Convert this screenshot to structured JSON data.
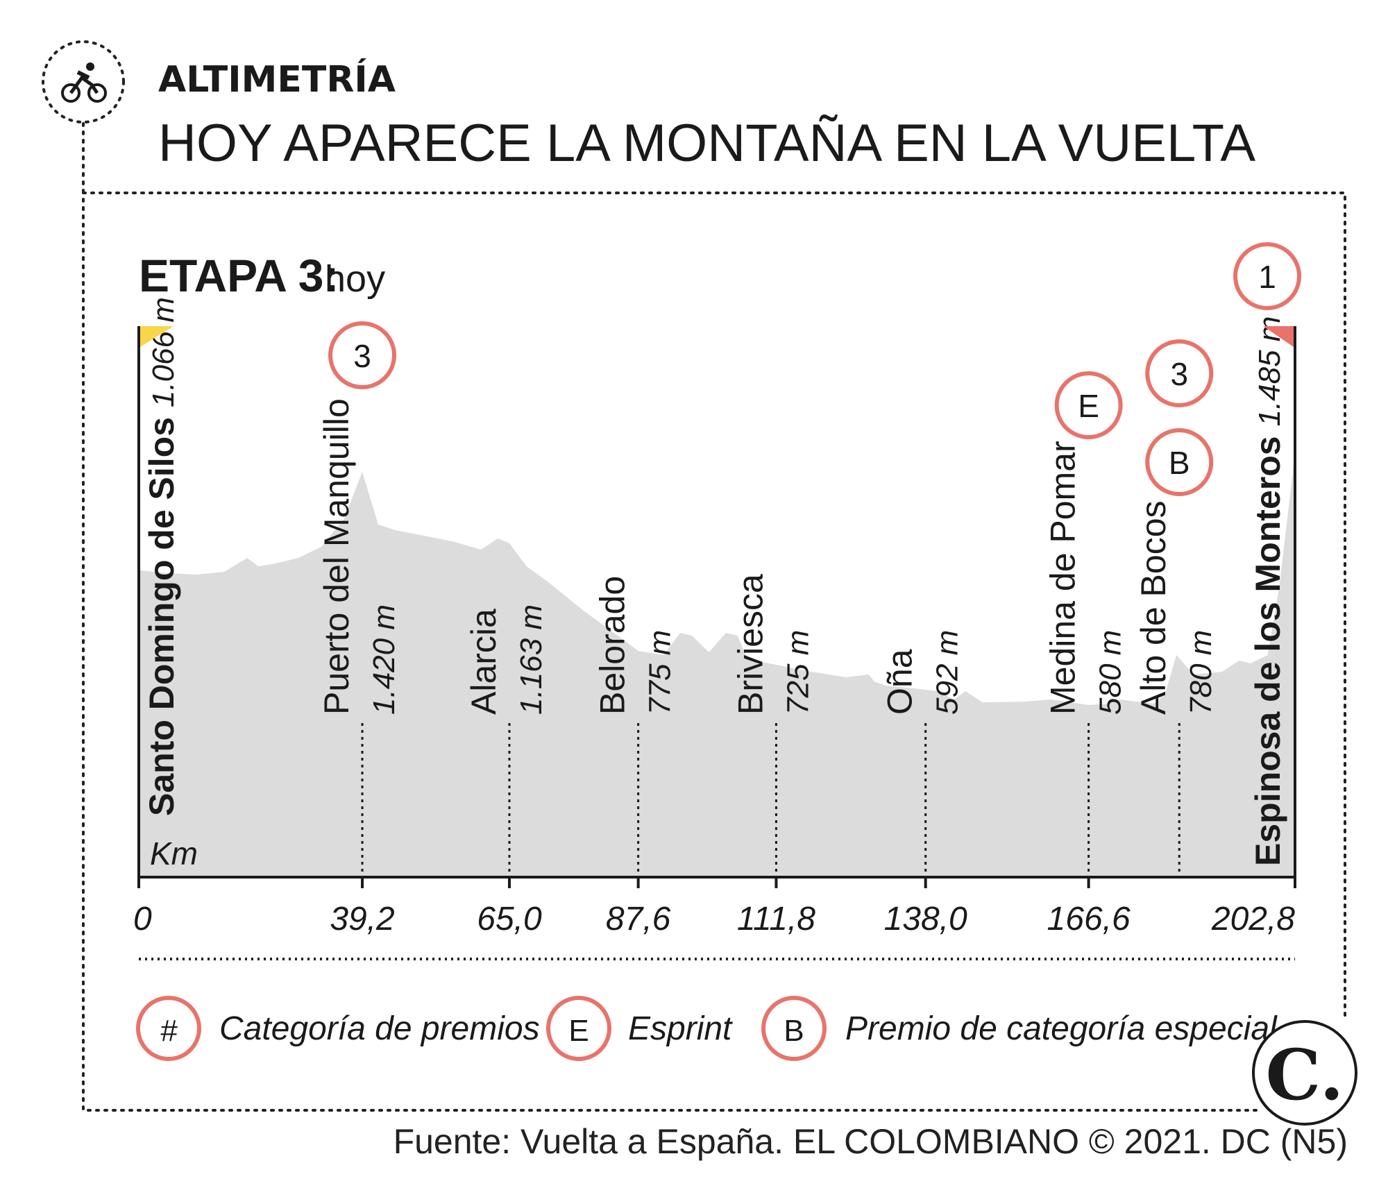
{
  "header": {
    "kicker": "ALTIMETRÍA",
    "title": "HOY APARECE LA MONTAÑA EN LA VUELTA"
  },
  "stage": {
    "label": "ETAPA 3:",
    "sub": "hoy"
  },
  "colors": {
    "profile_fill": "#dcdcdc",
    "badge_ring": "#e8736b",
    "start_flag": "#f7d64a",
    "finish_flag": "#e8736b",
    "text": "#1a1a1a"
  },
  "chart_data": {
    "type": "area",
    "xlabel": "Km",
    "x_ticks": [
      "0",
      "39,2",
      "65,0",
      "87,6",
      "111,8",
      "138,0",
      "166,6",
      "202,8"
    ],
    "xlim": [
      0,
      202.8
    ],
    "profile_km": [
      0,
      5,
      10,
      15,
      19,
      21,
      24,
      28,
      32,
      36,
      39.2,
      42,
      45,
      50,
      55,
      60,
      63,
      65,
      68,
      72,
      78,
      84,
      87.6,
      92,
      95,
      97,
      100,
      103,
      105,
      106.5,
      108,
      111.8,
      118,
      124,
      128,
      129,
      131,
      136,
      140,
      143,
      145,
      148,
      155,
      160,
      166.6,
      170,
      172,
      178,
      180,
      182,
      185,
      190,
      193,
      195,
      198,
      200,
      202.8
    ],
    "profile_m": [
      1066,
      1055,
      1050,
      1060,
      1110,
      1080,
      1090,
      1110,
      1150,
      1250,
      1420,
      1230,
      1210,
      1190,
      1170,
      1140,
      1180,
      1163,
      1080,
      1020,
      920,
      830,
      775,
      760,
      840,
      830,
      770,
      840,
      830,
      760,
      740,
      725,
      700,
      680,
      690,
      665,
      650,
      640,
      630,
      600,
      630,
      590,
      592,
      600,
      580,
      585,
      600,
      585,
      620,
      760,
      690,
      700,
      740,
      730,
      760,
      1000,
      1485
    ],
    "places": [
      {
        "name": "Santo Domingo de Silos",
        "alt": "1.066 m",
        "km": 0,
        "km_label": "0",
        "badge": "",
        "bold": true
      },
      {
        "name": "Puerto del Manquillo",
        "alt": "1.420 m",
        "km": 39.2,
        "km_label": "39,2",
        "badge": "3",
        "bold": false
      },
      {
        "name": "Alarcia",
        "alt": "1.163 m",
        "km": 65.0,
        "km_label": "65,0",
        "badge": "",
        "bold": false
      },
      {
        "name": "Belorado",
        "alt": "775 m",
        "km": 87.6,
        "km_label": "87,6",
        "badge": "",
        "bold": false
      },
      {
        "name": "Briviesca",
        "alt": "725 m",
        "km": 111.8,
        "km_label": "111,8",
        "badge": "",
        "bold": false
      },
      {
        "name": "Oña",
        "alt": "592 m",
        "km": 138.0,
        "km_label": "138,0",
        "badge": "",
        "bold": false
      },
      {
        "name": "Medina de Pomar",
        "alt": "580 m",
        "km": 166.6,
        "km_label": "166,6",
        "badge": "E",
        "bold": false
      },
      {
        "name": "Alto de Bocos",
        "alt": "780 m",
        "km": 182.5,
        "km_label": "",
        "badge": "3",
        "badge2": "B",
        "bold": false
      },
      {
        "name": "Espinosa de los Monteros",
        "alt": "1.485 m",
        "km": 202.8,
        "km_label": "202,8",
        "badge": "1",
        "bold": true
      }
    ]
  },
  "legend": [
    {
      "symbol": "#",
      "label": "Categoría de premios"
    },
    {
      "symbol": "E",
      "label": "Esprint"
    },
    {
      "symbol": "B",
      "label": "Premio de categoría especial"
    }
  ],
  "logo": {
    "letter": "C."
  },
  "source": "Fuente: Vuelta a España. EL COLOMBIANO © 2021. DC (N5)"
}
